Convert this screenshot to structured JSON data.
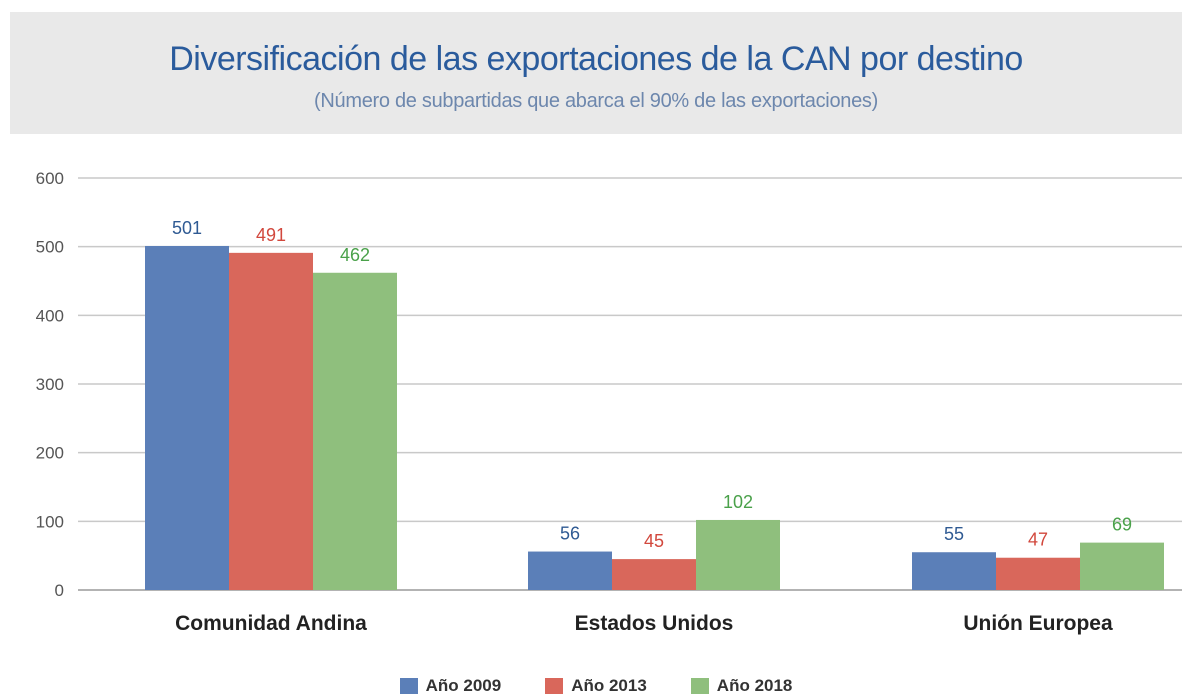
{
  "chart_data": {
    "type": "bar",
    "title": "Diversificación de las exportaciones de la CAN por destino",
    "subtitle": "(Número de subpartidas que abarca el 90% de las exportaciones)",
    "categories": [
      "Comunidad Andina",
      "Estados Unidos",
      "Unión Europea"
    ],
    "series": [
      {
        "name": "Año 2009",
        "values": [
          501,
          56,
          55
        ],
        "color": "#5b7fb8",
        "label_color": "#2f5a93"
      },
      {
        "name": "Año 2013",
        "values": [
          491,
          45,
          47
        ],
        "color": "#d9675b",
        "label_color": "#d2483d"
      },
      {
        "name": "Año 2018",
        "values": [
          462,
          102,
          69
        ],
        "color": "#8fbf7d",
        "label_color": "#4aa14a"
      }
    ],
    "ylim": [
      0,
      600
    ],
    "yticks": [
      0,
      100,
      200,
      300,
      400,
      500,
      600
    ],
    "grid": true,
    "legend_position": "bottom"
  }
}
